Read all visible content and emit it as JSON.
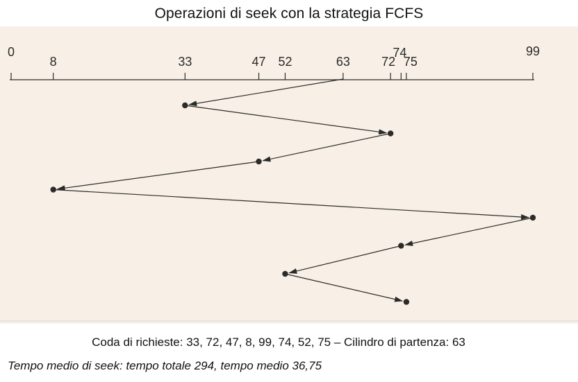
{
  "title": "Operazioni di seek con la strategia  FCFS",
  "axis": {
    "min": 0,
    "max": 99,
    "ticks": [
      0,
      8,
      33,
      47,
      52,
      63,
      72,
      74,
      75,
      99
    ]
  },
  "start_cylinder": 63,
  "request_queue": [
    33,
    72,
    47,
    8,
    99,
    74,
    52,
    75
  ],
  "queue_caption": "Coda di richieste: 33, 72, 47, 8, 99, 74, 52, 75 – Cilindro di partenza: 63",
  "average_caption": "Tempo medio di seek: tempo totale 294, tempo medio 36,75",
  "colors": {
    "line": "#2b2b2b",
    "panel": "#f8f0e6"
  }
}
